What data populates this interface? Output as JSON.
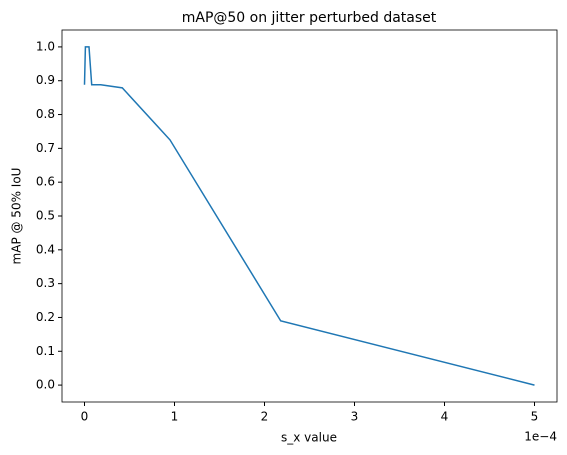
{
  "chart_data": {
    "type": "line",
    "title": "mAP@50 on jitter perturbed dataset",
    "x_label": "s_x value",
    "y_label": "mAP @ 50% IoU",
    "x_offset_label": "1e−4",
    "x": [
      0,
      0.01,
      0.05,
      0.08,
      0.18,
      0.42,
      0.95,
      2.18,
      5
    ],
    "series": [
      {
        "color": "#1f77b4",
        "values": [
          0.888,
          1.0,
          1.0,
          0.888,
          0.888,
          0.879,
          0.725,
          0.19,
          0.0
        ]
      }
    ],
    "xlim": [
      -0.25,
      5.25
    ],
    "ylim": [
      -0.05,
      1.05
    ],
    "xticks": [
      0,
      1,
      2,
      3,
      4,
      5
    ],
    "yticks": [
      {
        "value": 0,
        "label": "0.0"
      },
      {
        "value": 0.1,
        "label": "0.1"
      },
      {
        "value": 0.2,
        "label": "0.2"
      },
      {
        "value": 0.3,
        "label": "0.3"
      },
      {
        "value": 0.4,
        "label": "0.4"
      },
      {
        "value": 0.5,
        "label": "0.5"
      },
      {
        "value": 0.6,
        "label": "0.6"
      },
      {
        "value": 0.7,
        "label": "0.7"
      },
      {
        "value": 0.8,
        "label": "0.8"
      },
      {
        "value": 0.9,
        "label": "0.9"
      },
      {
        "value": 1.0,
        "label": "1.0"
      }
    ],
    "grid": false
  }
}
